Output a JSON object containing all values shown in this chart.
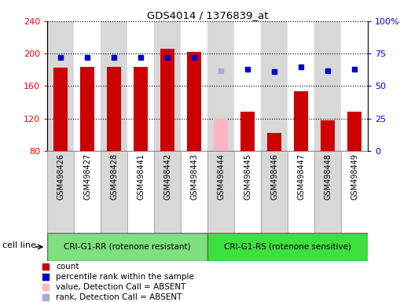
{
  "title": "GDS4014 / 1376839_at",
  "samples": [
    "GSM498426",
    "GSM498427",
    "GSM498428",
    "GSM498441",
    "GSM498442",
    "GSM498443",
    "GSM498444",
    "GSM498445",
    "GSM498446",
    "GSM498447",
    "GSM498448",
    "GSM498449"
  ],
  "count_values": [
    183,
    184,
    184,
    184,
    206,
    202,
    null,
    128,
    102,
    154,
    118,
    128
  ],
  "count_absent": [
    null,
    null,
    null,
    null,
    null,
    null,
    120,
    null,
    null,
    null,
    null,
    null
  ],
  "rank_values": [
    72,
    72,
    72,
    72,
    72,
    72,
    null,
    63,
    61,
    65,
    62,
    63
  ],
  "rank_absent": [
    null,
    null,
    null,
    null,
    null,
    null,
    62,
    null,
    null,
    null,
    null,
    null
  ],
  "ylim_left": [
    80,
    240
  ],
  "ylim_right": [
    0,
    100
  ],
  "yticks_left": [
    80,
    120,
    160,
    200,
    240
  ],
  "yticks_right": [
    0,
    25,
    50,
    75,
    100
  ],
  "group1_label": "CRI-G1-RR (rotenone resistant)",
  "group2_label": "CRI-G1-RS (rotenone sensitive)",
  "group1_color": "#7EE07E",
  "group2_color": "#3EE03E",
  "group1_indices": [
    0,
    1,
    2,
    3,
    4,
    5
  ],
  "group2_indices": [
    6,
    7,
    8,
    9,
    10,
    11
  ],
  "bar_color_present": "#CC0000",
  "bar_color_absent": "#FFB6C1",
  "dot_color_present": "#0000CC",
  "dot_color_absent": "#AAAADD",
  "cell_line_label": "cell line",
  "col_bg_even": "#D8D8D8",
  "legend": [
    {
      "color": "#CC0000",
      "marker": "s",
      "label": "count"
    },
    {
      "color": "#0000CC",
      "marker": "s",
      "label": "percentile rank within the sample"
    },
    {
      "color": "#FFB6C1",
      "marker": "s",
      "label": "value, Detection Call = ABSENT"
    },
    {
      "color": "#AAAADD",
      "marker": "s",
      "label": "rank, Detection Call = ABSENT"
    }
  ]
}
